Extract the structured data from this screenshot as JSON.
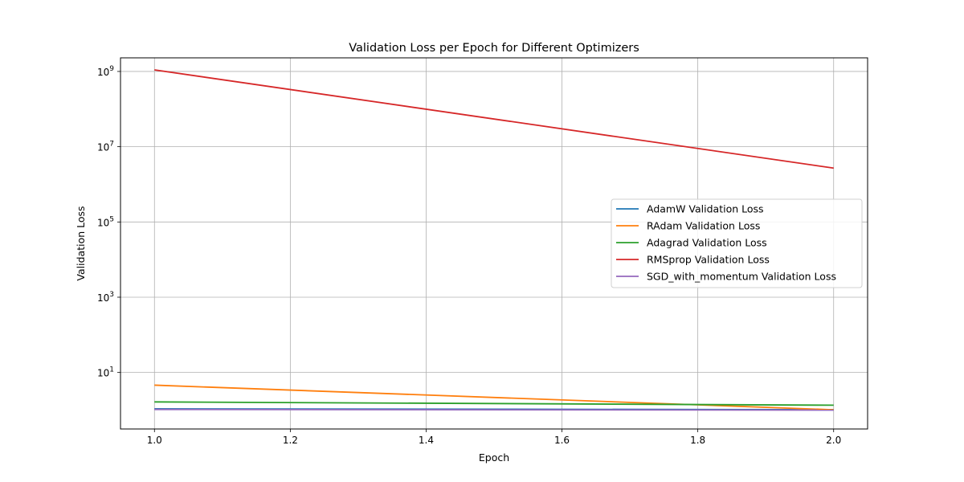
{
  "chart_data": {
    "type": "line",
    "title": "Validation Loss per Epoch for Different Optimizers",
    "xlabel": "Epoch",
    "ylabel": "Validation Loss",
    "x": [
      1.0,
      2.0
    ],
    "xlim": [
      0.95,
      2.05
    ],
    "ylim": [
      0.315,
      2300000000
    ],
    "yscale": "log",
    "grid": true,
    "legend_position": "center-right",
    "x_ticks": [
      "1.0",
      "1.2",
      "1.4",
      "1.6",
      "1.8",
      "2.0"
    ],
    "y_ticks": [
      {
        "base": "10",
        "exp": "1"
      },
      {
        "base": "10",
        "exp": "3"
      },
      {
        "base": "10",
        "exp": "5"
      },
      {
        "base": "10",
        "exp": "7"
      },
      {
        "base": "10",
        "exp": "9"
      }
    ],
    "series": [
      {
        "name": "AdamW Validation Loss",
        "color": "#1f77b4",
        "values": [
          1.08,
          1.03
        ]
      },
      {
        "name": "RAdam Validation Loss",
        "color": "#ff7f0e",
        "values": [
          4.6,
          1.02
        ]
      },
      {
        "name": "Adagrad Validation Loss",
        "color": "#2ca02c",
        "values": [
          1.65,
          1.35
        ]
      },
      {
        "name": "RMSprop Validation Loss",
        "color": "#d62728",
        "values": [
          1100000000,
          2700000
        ]
      },
      {
        "name": "SGD_with_momentum Validation Loss",
        "color": "#9467bd",
        "values": [
          1.04,
          1.0
        ]
      }
    ]
  }
}
